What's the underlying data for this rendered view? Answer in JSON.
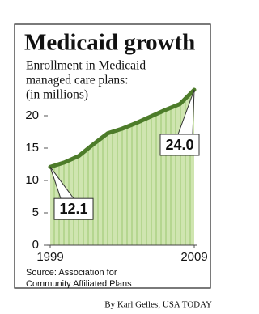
{
  "chart_data": {
    "type": "area",
    "title": "Medicaid growth",
    "subtitle": [
      "Enrollment in Medicaid",
      "managed care plans:",
      "(in millions)"
    ],
    "x": [
      1999,
      2000,
      2001,
      2002,
      2003,
      2004,
      2005,
      2006,
      2007,
      2008,
      2009
    ],
    "values": [
      12.1,
      12.8,
      13.8,
      15.6,
      17.3,
      18.0,
      18.9,
      19.9,
      20.9,
      21.8,
      24.0
    ],
    "value_labels": [
      "12.1",
      null,
      null,
      null,
      null,
      null,
      null,
      null,
      null,
      null,
      "24.0"
    ],
    "color": "#4d7c2a",
    "fill_color": "#cfe5b0",
    "xlim": [
      1999,
      2009
    ],
    "xticks": [
      1999,
      2009
    ],
    "ylim": [
      0,
      25
    ],
    "yticks": [
      0,
      5,
      10,
      15,
      20
    ],
    "grid": false,
    "source": [
      "Source: Association for",
      "Community Affiliated Plans"
    ],
    "credit": "By Karl Gelles, USA TODAY"
  }
}
